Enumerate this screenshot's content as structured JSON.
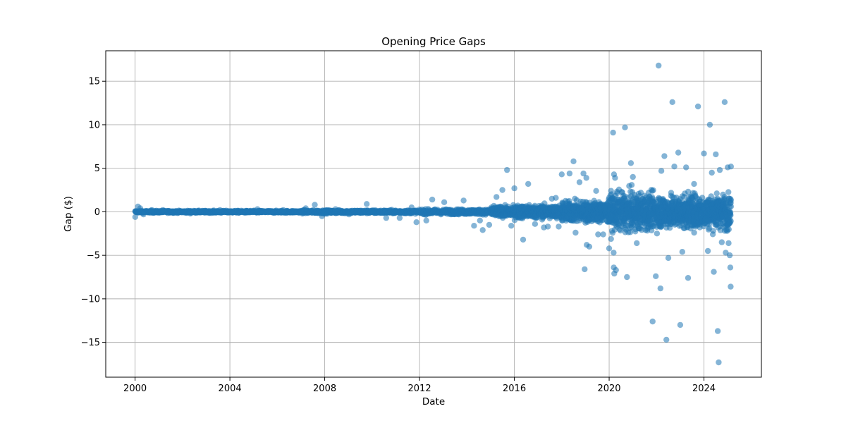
{
  "chart_data": {
    "type": "scatter",
    "title": "Opening Price Gaps",
    "xlabel": "Date",
    "ylabel": "Gap ($)",
    "x_ticks": [
      "2000",
      "2004",
      "2008",
      "2012",
      "2016",
      "2020",
      "2024"
    ],
    "y_ticks": [
      "15",
      "10",
      "5",
      "0",
      "−5",
      "−10",
      "−15"
    ],
    "x_scale": "date",
    "xlim": [
      "1998-10-06",
      "2026-06-04"
    ],
    "ylim": [
      -19.0,
      18.5
    ],
    "grid": true,
    "marker_color": "#1f77b4",
    "marker_alpha": 0.55,
    "series": [
      {
        "points": [
          [
            "2000-01-03",
            -0.6
          ],
          [
            "2000-02-14",
            0.6
          ],
          [
            "2000-03-20",
            0.4
          ],
          [
            "2000-05-10",
            -0.3
          ],
          [
            "2000-09-15",
            0.2
          ],
          [
            "2001-03-05",
            0.2
          ],
          [
            "2002-05-01",
            -0.2
          ],
          [
            "2003-08-01",
            0.2
          ],
          [
            "2005-03-01",
            0.3
          ],
          [
            "2006-04-01",
            0.2
          ],
          [
            "2007-03-15",
            0.4
          ],
          [
            "2007-08-01",
            0.8
          ],
          [
            "2007-11-20",
            -0.5
          ],
          [
            "2008-06-15",
            0.3
          ],
          [
            "2009-01-10",
            -0.3
          ],
          [
            "2009-10-10",
            0.9
          ],
          [
            "2010-08-05",
            -0.7
          ],
          [
            "2011-03-01",
            -0.7
          ],
          [
            "2011-09-01",
            0.5
          ],
          [
            "2011-11-15",
            -1.2
          ],
          [
            "2012-04-15",
            -1.0
          ],
          [
            "2012-07-15",
            1.4
          ],
          [
            "2013-01-15",
            1.1
          ],
          [
            "2013-11-10",
            1.3
          ],
          [
            "2014-04-20",
            -1.6
          ],
          [
            "2014-07-20",
            -1.0
          ],
          [
            "2014-09-01",
            -2.1
          ],
          [
            "2014-12-10",
            -1.5
          ],
          [
            "2015-01-15",
            0.5
          ],
          [
            "2015-04-01",
            1.7
          ],
          [
            "2015-07-01",
            2.5
          ],
          [
            "2015-09-10",
            4.8
          ],
          [
            "2015-11-15",
            -1.6
          ],
          [
            "2016-01-01",
            2.7
          ],
          [
            "2016-05-15",
            -3.2
          ],
          [
            "2016-08-01",
            3.2
          ],
          [
            "2016-11-15",
            -1.4
          ],
          [
            "2017-04-01",
            -1.8
          ],
          [
            "2017-06-01",
            -1.7
          ],
          [
            "2017-08-01",
            1.5
          ],
          [
            "2017-10-01",
            1.6
          ],
          [
            "2017-11-15",
            -1.7
          ],
          [
            "2018-01-01",
            4.3
          ],
          [
            "2018-05-01",
            4.4
          ],
          [
            "2018-07-01",
            5.8
          ],
          [
            "2018-08-01",
            -2.4
          ],
          [
            "2018-10-01",
            3.4
          ],
          [
            "2018-12-01",
            4.4
          ],
          [
            "2018-12-20",
            -6.6
          ],
          [
            "2019-01-15",
            3.9
          ],
          [
            "2019-01-20",
            -3.8
          ],
          [
            "2019-03-01",
            -4.0
          ],
          [
            "2019-06-15",
            2.4
          ],
          [
            "2019-07-15",
            -2.6
          ],
          [
            "2019-10-01",
            -2.6
          ],
          [
            "2020-01-01",
            -4.2
          ],
          [
            "2020-03-01",
            9.1
          ],
          [
            "2020-03-10",
            -4.7
          ],
          [
            "2020-03-12",
            -6.4
          ],
          [
            "2020-03-15",
            4.3
          ],
          [
            "2020-03-20",
            -7.1
          ],
          [
            "2020-04-01",
            3.9
          ],
          [
            "2020-04-15",
            -6.7
          ],
          [
            "2020-09-01",
            9.7
          ],
          [
            "2020-10-01",
            -7.5
          ],
          [
            "2020-12-01",
            5.6
          ],
          [
            "2021-01-01",
            4.0
          ],
          [
            "2021-03-01",
            -3.6
          ],
          [
            "2021-09-01",
            2.2
          ],
          [
            "2021-11-01",
            -12.6
          ],
          [
            "2021-12-20",
            -7.4
          ],
          [
            "2022-02-01",
            16.8
          ],
          [
            "2022-03-01",
            -8.8
          ],
          [
            "2022-03-15",
            4.7
          ],
          [
            "2022-05-01",
            6.4
          ],
          [
            "2022-06-01",
            -14.7
          ],
          [
            "2022-07-01",
            -5.3
          ],
          [
            "2022-09-01",
            12.6
          ],
          [
            "2022-10-01",
            5.2
          ],
          [
            "2022-12-01",
            6.8
          ],
          [
            "2023-01-01",
            -13.0
          ],
          [
            "2023-02-01",
            -4.6
          ],
          [
            "2023-04-01",
            5.1
          ],
          [
            "2023-05-01",
            -7.6
          ],
          [
            "2023-08-01",
            3.2
          ],
          [
            "2023-10-01",
            12.1
          ],
          [
            "2024-01-01",
            6.7
          ],
          [
            "2024-03-01",
            -4.5
          ],
          [
            "2024-04-01",
            10.0
          ],
          [
            "2024-05-01",
            4.5
          ],
          [
            "2024-06-01",
            -6.9
          ],
          [
            "2024-07-01",
            6.6
          ],
          [
            "2024-08-01",
            -13.7
          ],
          [
            "2024-08-15",
            -17.3
          ],
          [
            "2024-09-01",
            4.8
          ],
          [
            "2024-10-01",
            -3.5
          ],
          [
            "2024-11-15",
            12.6
          ],
          [
            "2024-12-01",
            -4.7
          ],
          [
            "2025-01-01",
            5.1
          ],
          [
            "2025-01-15",
            -3.6
          ],
          [
            "2025-02-01",
            -5.0
          ],
          [
            "2025-02-10",
            -6.4
          ],
          [
            "2025-02-15",
            -8.6
          ],
          [
            "2025-02-20",
            5.2
          ]
        ]
      }
    ]
  }
}
